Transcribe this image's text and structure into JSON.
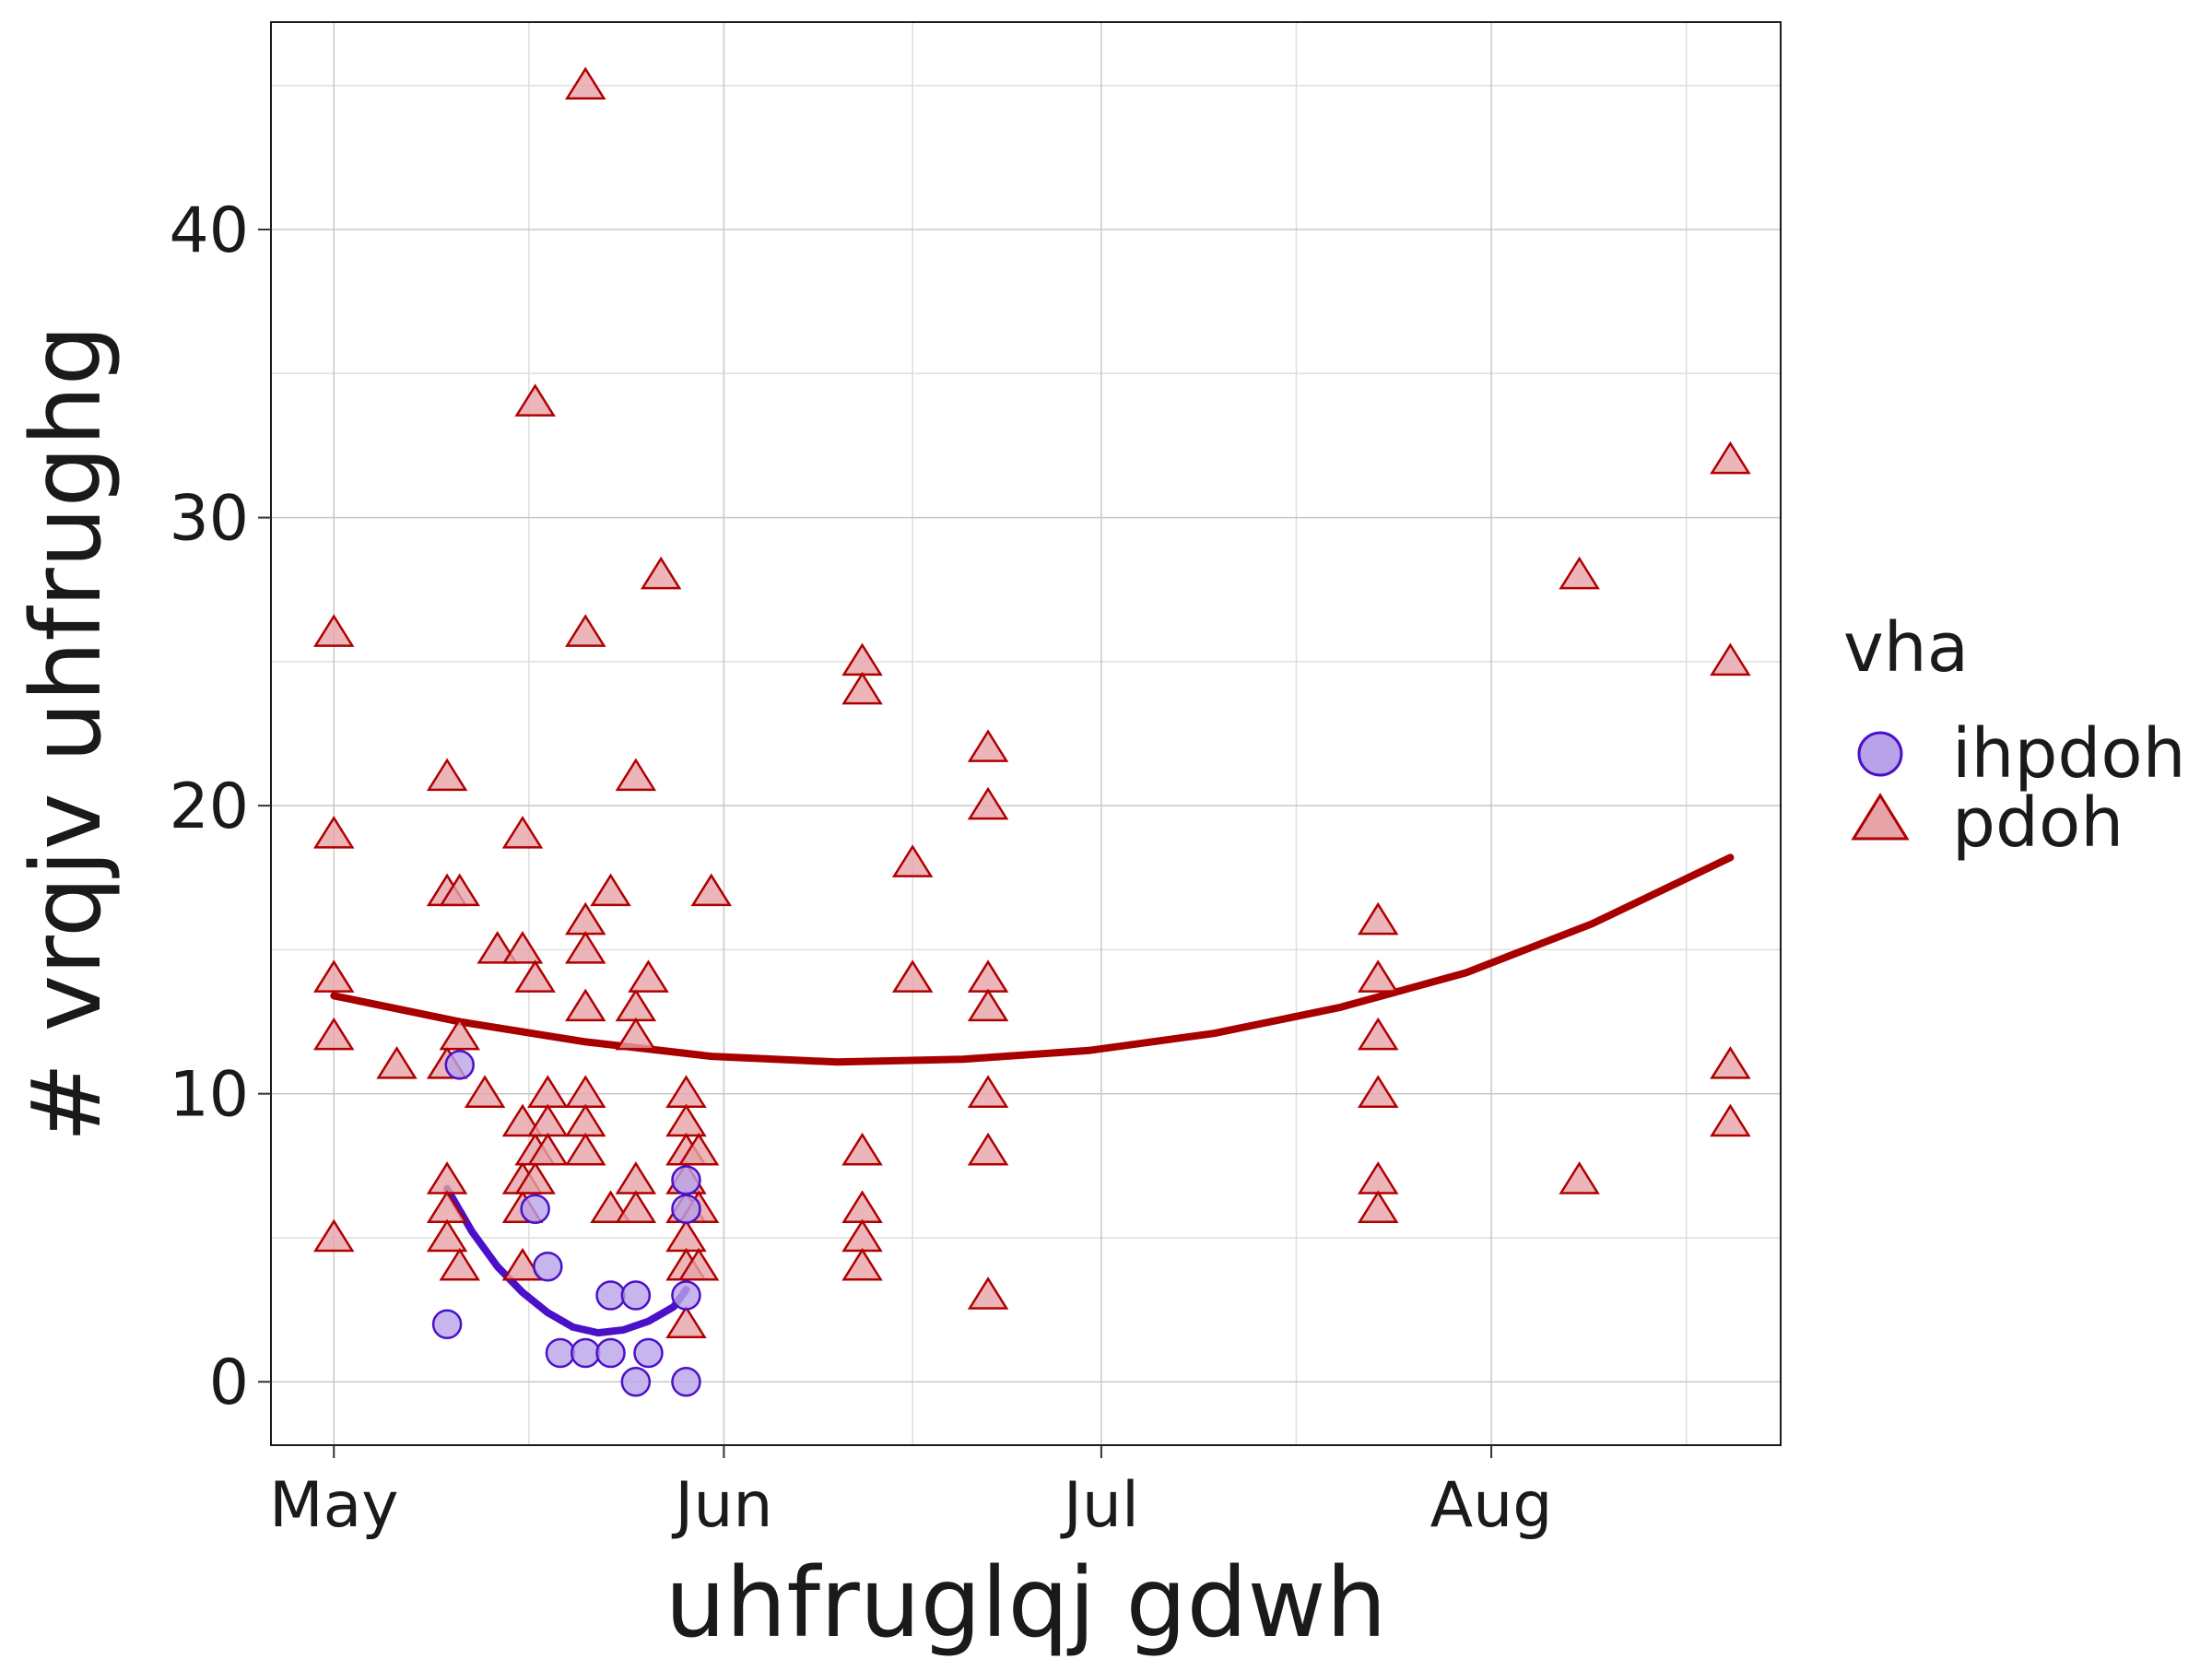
{
  "chart_data": {
    "type": "scatter",
    "xlabel": "uhfruglqj gdwh",
    "ylabel": "# vrqjv uhfrughg",
    "x_ticks": [
      "May",
      "Jun",
      "Jul",
      "Aug"
    ],
    "y_ticks": [
      0,
      10,
      20,
      30,
      40
    ],
    "xlim": [
      "2023-04-26",
      "2023-08-24"
    ],
    "ylim": [
      -2.2,
      47.2
    ],
    "grid": true,
    "legend": {
      "title": "vha",
      "position": "right"
    },
    "colors": {
      "ihpdoh": {
        "fill": "#b9a3e8",
        "stroke": "#4b10c9",
        "line": "#4b10c9"
      },
      "pdoh": {
        "fill": "#e6a3a8",
        "stroke": "#b00000",
        "line": "#a80000"
      }
    },
    "series": [
      {
        "name": "ihpdoh",
        "marker": "circle",
        "points": [
          [
            "2023-05-10",
            2
          ],
          [
            "2023-05-11",
            11
          ],
          [
            "2023-05-17",
            6
          ],
          [
            "2023-05-18",
            4
          ],
          [
            "2023-05-19",
            1
          ],
          [
            "2023-05-21",
            1
          ],
          [
            "2023-05-23",
            1
          ],
          [
            "2023-05-23",
            3
          ],
          [
            "2023-05-25",
            0
          ],
          [
            "2023-05-25",
            3
          ],
          [
            "2023-05-26",
            1
          ],
          [
            "2023-05-29",
            0
          ],
          [
            "2023-05-29",
            3
          ],
          [
            "2023-05-29",
            6
          ],
          [
            "2023-05-29",
            7
          ]
        ],
        "trend": [
          [
            "2023-05-10",
            6.7
          ],
          [
            "2023-05-12",
            5.2
          ],
          [
            "2023-05-14",
            4.0
          ],
          [
            "2023-05-16",
            3.1
          ],
          [
            "2023-05-18",
            2.4
          ],
          [
            "2023-05-20",
            1.9
          ],
          [
            "2023-05-22",
            1.7
          ],
          [
            "2023-05-24",
            1.8
          ],
          [
            "2023-05-26",
            2.1
          ],
          [
            "2023-05-28",
            2.6
          ],
          [
            "2023-05-29",
            3.2
          ]
        ]
      },
      {
        "name": "pdoh",
        "marker": "triangle",
        "points": [
          [
            "2023-05-01",
            26
          ],
          [
            "2023-05-01",
            19
          ],
          [
            "2023-05-01",
            14
          ],
          [
            "2023-05-01",
            12
          ],
          [
            "2023-05-01",
            5
          ],
          [
            "2023-05-06",
            11
          ],
          [
            "2023-05-10",
            21
          ],
          [
            "2023-05-10",
            17
          ],
          [
            "2023-05-10",
            11
          ],
          [
            "2023-05-10",
            7
          ],
          [
            "2023-05-10",
            6
          ],
          [
            "2023-05-10",
            5
          ],
          [
            "2023-05-11",
            17
          ],
          [
            "2023-05-11",
            12
          ],
          [
            "2023-05-11",
            4
          ],
          [
            "2023-05-13",
            10
          ],
          [
            "2023-05-14",
            15
          ],
          [
            "2023-05-16",
            19
          ],
          [
            "2023-05-16",
            15
          ],
          [
            "2023-05-16",
            9
          ],
          [
            "2023-05-16",
            7
          ],
          [
            "2023-05-16",
            6
          ],
          [
            "2023-05-16",
            4
          ],
          [
            "2023-05-17",
            34
          ],
          [
            "2023-05-17",
            14
          ],
          [
            "2023-05-17",
            8
          ],
          [
            "2023-05-17",
            7
          ],
          [
            "2023-05-18",
            10
          ],
          [
            "2023-05-18",
            9
          ],
          [
            "2023-05-18",
            8
          ],
          [
            "2023-05-21",
            45
          ],
          [
            "2023-05-21",
            26
          ],
          [
            "2023-05-21",
            16
          ],
          [
            "2023-05-21",
            15
          ],
          [
            "2023-05-21",
            13
          ],
          [
            "2023-05-21",
            10
          ],
          [
            "2023-05-21",
            9
          ],
          [
            "2023-05-21",
            8
          ],
          [
            "2023-05-23",
            17
          ],
          [
            "2023-05-23",
            6
          ],
          [
            "2023-05-25",
            21
          ],
          [
            "2023-05-25",
            13
          ],
          [
            "2023-05-25",
            12
          ],
          [
            "2023-05-25",
            7
          ],
          [
            "2023-05-25",
            6
          ],
          [
            "2023-05-26",
            14
          ],
          [
            "2023-05-27",
            28
          ],
          [
            "2023-05-29",
            10
          ],
          [
            "2023-05-29",
            9
          ],
          [
            "2023-05-29",
            8
          ],
          [
            "2023-05-29",
            7
          ],
          [
            "2023-05-29",
            6
          ],
          [
            "2023-05-29",
            5
          ],
          [
            "2023-05-29",
            4
          ],
          [
            "2023-05-29",
            2
          ],
          [
            "2023-05-30",
            8
          ],
          [
            "2023-05-30",
            6
          ],
          [
            "2023-05-30",
            4
          ],
          [
            "2023-05-31",
            17
          ],
          [
            "2023-06-12",
            25
          ],
          [
            "2023-06-12",
            24
          ],
          [
            "2023-06-12",
            8
          ],
          [
            "2023-06-12",
            6
          ],
          [
            "2023-06-12",
            5
          ],
          [
            "2023-06-12",
            4
          ],
          [
            "2023-06-16",
            18
          ],
          [
            "2023-06-16",
            14
          ],
          [
            "2023-06-22",
            22
          ],
          [
            "2023-06-22",
            20
          ],
          [
            "2023-06-22",
            14
          ],
          [
            "2023-06-22",
            13
          ],
          [
            "2023-06-22",
            10
          ],
          [
            "2023-06-22",
            8
          ],
          [
            "2023-06-22",
            3
          ],
          [
            "2023-07-23",
            16
          ],
          [
            "2023-07-23",
            14
          ],
          [
            "2023-07-23",
            12
          ],
          [
            "2023-07-23",
            10
          ],
          [
            "2023-07-23",
            7
          ],
          [
            "2023-07-23",
            6
          ],
          [
            "2023-08-08",
            28
          ],
          [
            "2023-08-08",
            7
          ],
          [
            "2023-08-20",
            32
          ],
          [
            "2023-08-20",
            25
          ],
          [
            "2023-08-20",
            11
          ],
          [
            "2023-08-20",
            9
          ]
        ],
        "trend": [
          [
            "2023-05-01",
            13.4
          ],
          [
            "2023-05-11",
            12.5
          ],
          [
            "2023-05-21",
            11.8
          ],
          [
            "2023-05-31",
            11.3
          ],
          [
            "2023-06-10",
            11.1
          ],
          [
            "2023-06-20",
            11.2
          ],
          [
            "2023-06-30",
            11.5
          ],
          [
            "2023-07-10",
            12.1
          ],
          [
            "2023-07-20",
            13.0
          ],
          [
            "2023-07-30",
            14.2
          ],
          [
            "2023-08-09",
            15.9
          ],
          [
            "2023-08-20",
            18.2
          ]
        ]
      }
    ]
  }
}
